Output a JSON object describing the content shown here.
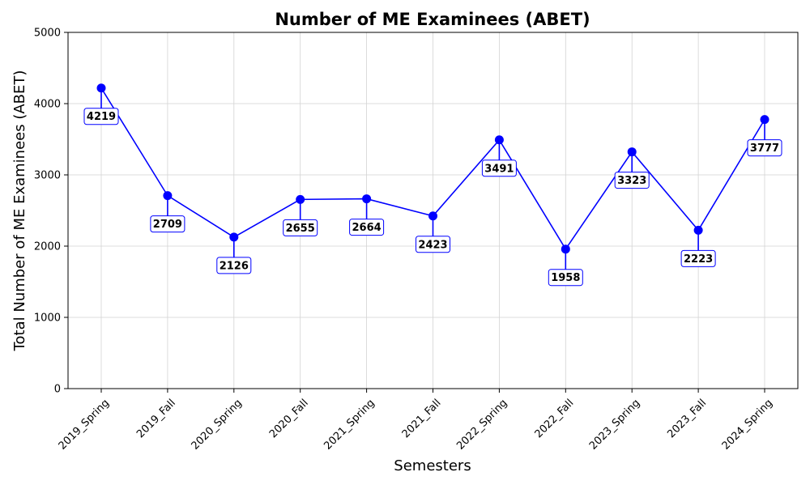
{
  "chart_data": {
    "type": "line",
    "title": "Number of ME Examinees (ABET)",
    "xlabel": "Semesters",
    "ylabel": "Total Number of ME Examinees (ABET)",
    "categories": [
      "2019_Spring",
      "2019_Fall",
      "2020_Spring",
      "2020_Fall",
      "2021_Spring",
      "2021_Fall",
      "2022_Spring",
      "2022_Fall",
      "2023_Spring",
      "2023_Fall",
      "2024_Spring"
    ],
    "values": [
      4219,
      2709,
      2126,
      2655,
      2664,
      2423,
      3491,
      1958,
      3323,
      2223,
      3777
    ],
    "ylim": [
      0,
      5000
    ],
    "yticks": [
      0,
      1000,
      2000,
      3000,
      4000,
      5000
    ],
    "grid": true,
    "legend": "none",
    "colors": {
      "line": "#0000ff",
      "marker": "#0000ff",
      "label_border": "#0000ff",
      "grid": "#d3d3d3"
    }
  }
}
